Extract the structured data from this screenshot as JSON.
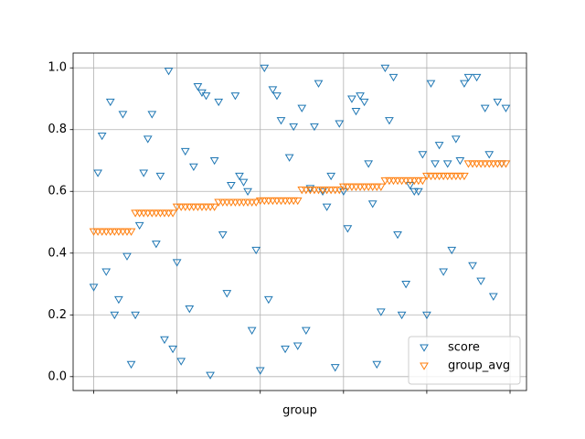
{
  "chart_data": {
    "type": "scatter",
    "x_label": "group",
    "x": [
      0,
      1,
      2,
      3,
      4,
      5,
      6,
      7,
      8,
      9,
      10,
      11,
      12,
      13,
      14,
      15,
      16,
      17,
      18,
      19,
      20,
      21,
      22,
      23,
      24,
      25,
      26,
      27,
      28,
      29,
      30,
      31,
      32,
      33,
      34,
      35,
      36,
      37,
      38,
      39,
      40,
      41,
      42,
      43,
      44,
      45,
      46,
      47,
      48,
      49,
      50,
      51,
      52,
      53,
      54,
      55,
      56,
      57,
      58,
      59,
      60,
      61,
      62,
      63,
      64,
      65,
      66,
      67,
      68,
      69,
      70,
      71,
      72,
      73,
      74,
      75,
      76,
      77,
      78,
      79,
      80,
      81,
      82,
      83,
      84,
      85,
      86,
      87,
      88,
      89,
      90,
      91,
      92,
      93,
      94,
      95,
      96,
      97,
      98,
      99
    ],
    "series": [
      {
        "name": "score",
        "color": "#1f77b4",
        "values": [
          0.29,
          0.66,
          0.78,
          0.34,
          0.89,
          0.2,
          0.25,
          0.85,
          0.39,
          0.04,
          0.2,
          0.49,
          0.66,
          0.77,
          0.85,
          0.43,
          0.65,
          0.12,
          0.99,
          0.09,
          0.37,
          0.05,
          0.73,
          0.22,
          0.68,
          0.94,
          0.92,
          0.91,
          0.005,
          0.7,
          0.89,
          0.46,
          0.27,
          0.62,
          0.91,
          0.65,
          0.63,
          0.6,
          0.15,
          0.41,
          0.02,
          1.0,
          0.25,
          0.93,
          0.91,
          0.83,
          0.09,
          0.71,
          0.81,
          0.1,
          0.87,
          0.15,
          0.61,
          0.81,
          0.95,
          0.6,
          0.55,
          0.65,
          0.03,
          0.82,
          0.6,
          0.48,
          0.9,
          0.86,
          0.91,
          0.89,
          0.69,
          0.56,
          0.04,
          0.21,
          1.0,
          0.83,
          0.97,
          0.46,
          0.2,
          0.3,
          0.62,
          0.6,
          0.6,
          0.72,
          0.2,
          0.95,
          0.69,
          0.75,
          0.34,
          0.69,
          0.41,
          0.77,
          0.7,
          0.95,
          0.97,
          0.36,
          0.97,
          0.31,
          0.87,
          0.72,
          0.26,
          0.89,
          0.69,
          0.87
        ]
      },
      {
        "name": "group_avg",
        "color": "#ff7f0e",
        "values": [
          0.47,
          0.47,
          0.47,
          0.47,
          0.47,
          0.47,
          0.47,
          0.47,
          0.47,
          0.47,
          0.53,
          0.53,
          0.53,
          0.53,
          0.53,
          0.53,
          0.53,
          0.53,
          0.53,
          0.53,
          0.55,
          0.55,
          0.55,
          0.55,
          0.55,
          0.55,
          0.55,
          0.55,
          0.55,
          0.55,
          0.565,
          0.565,
          0.565,
          0.565,
          0.565,
          0.565,
          0.565,
          0.565,
          0.565,
          0.565,
          0.57,
          0.57,
          0.57,
          0.57,
          0.57,
          0.57,
          0.57,
          0.57,
          0.57,
          0.57,
          0.605,
          0.605,
          0.605,
          0.605,
          0.605,
          0.605,
          0.605,
          0.605,
          0.605,
          0.605,
          0.615,
          0.615,
          0.615,
          0.615,
          0.615,
          0.615,
          0.615,
          0.615,
          0.615,
          0.615,
          0.635,
          0.635,
          0.635,
          0.635,
          0.635,
          0.635,
          0.635,
          0.635,
          0.635,
          0.635,
          0.65,
          0.65,
          0.65,
          0.65,
          0.65,
          0.65,
          0.65,
          0.65,
          0.65,
          0.65,
          0.69,
          0.69,
          0.69,
          0.69,
          0.69,
          0.69,
          0.69,
          0.69,
          0.69,
          0.69
        ]
      }
    ],
    "xlim": [
      -4.95,
      103.95
    ],
    "xticks": [
      0,
      20,
      40,
      60,
      80,
      100
    ],
    "ylim": [
      -0.045,
      1.048
    ],
    "yticks": [
      {
        "value": 0,
        "label": "0.0"
      },
      {
        "value": 0.2,
        "label": "0.2"
      },
      {
        "value": 0.4,
        "label": "0.4"
      },
      {
        "value": 0.6,
        "label": "0.6"
      },
      {
        "value": 0.8,
        "label": "0.8"
      },
      {
        "value": 1,
        "label": "1.0"
      }
    ],
    "grid": true,
    "legend": "lower right"
  }
}
